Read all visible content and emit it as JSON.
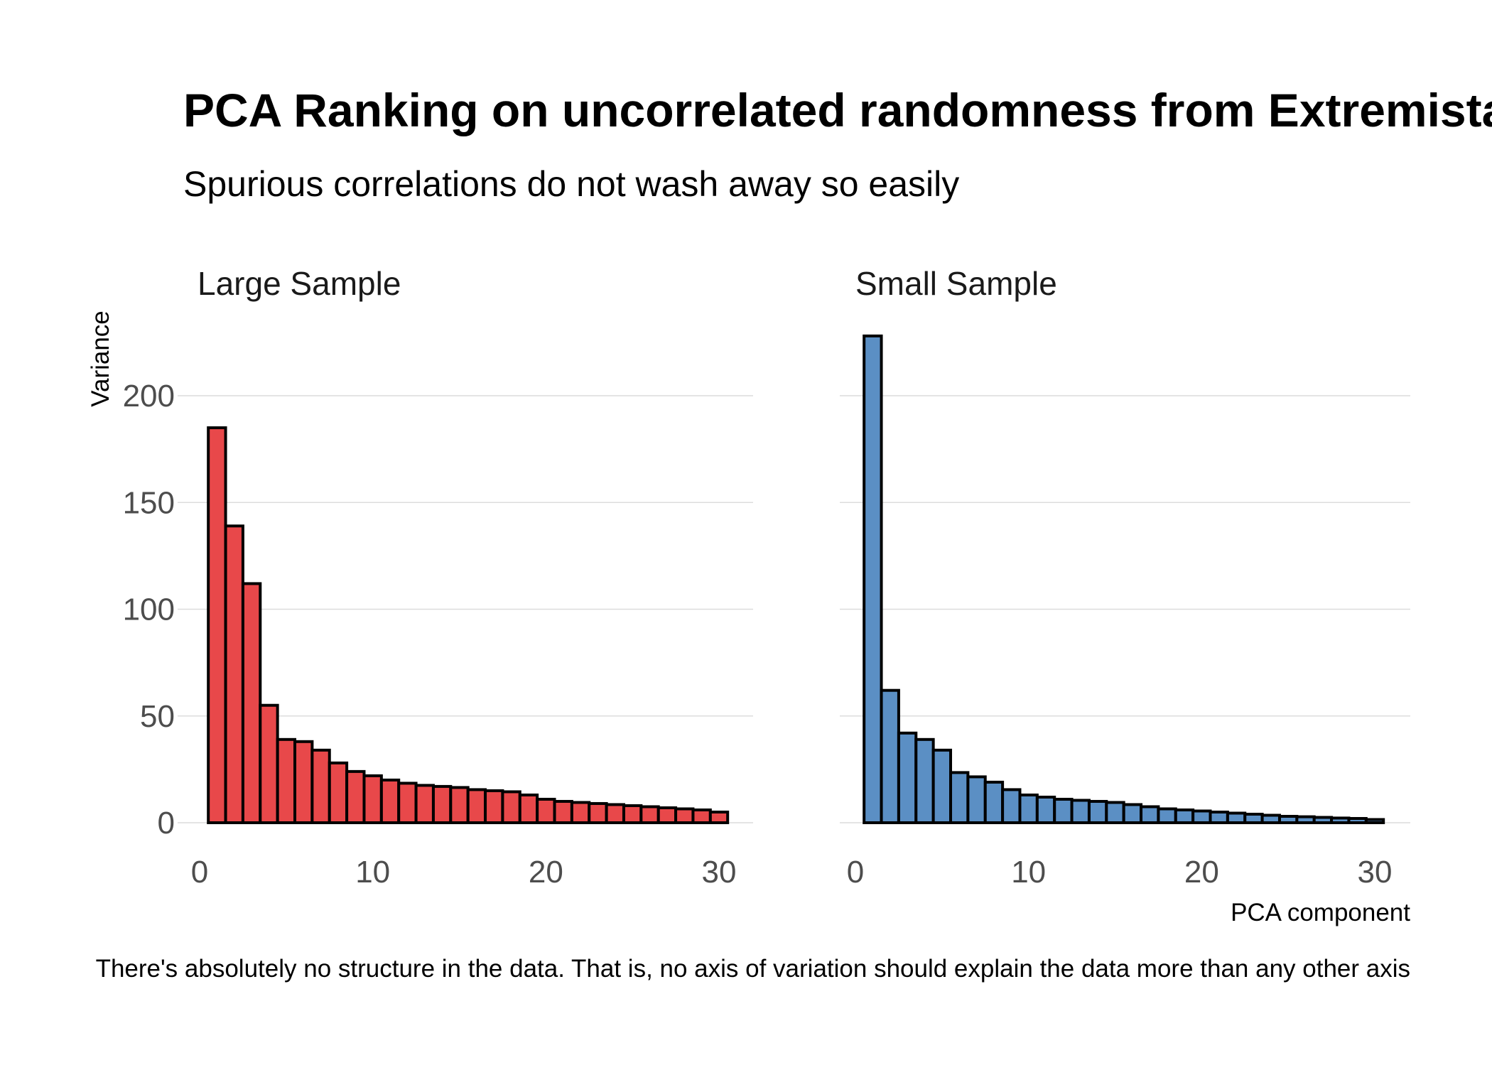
{
  "title": "PCA Ranking on uncorrelated randomness from Extremistan",
  "subtitle": "Spurious correlations do not wash away so easily",
  "caption": "There's absolutely no structure in the data. That is, no axis of variation should explain the data more than any other axis",
  "colors": {
    "large": "#E8484A",
    "small": "#5B8FC4"
  },
  "chart_data": {
    "type": "bar",
    "xlabel": "PCA component",
    "ylabel": "Variance",
    "ylim": [
      0,
      230
    ],
    "xlim": [
      0,
      31
    ],
    "y_ticks": [
      0,
      50,
      100,
      150,
      200
    ],
    "x_ticks": [
      0,
      10,
      20,
      30
    ],
    "grid": true,
    "legend": "none",
    "x": [
      1,
      2,
      3,
      4,
      5,
      6,
      7,
      8,
      9,
      10,
      11,
      12,
      13,
      14,
      15,
      16,
      17,
      18,
      19,
      20,
      21,
      22,
      23,
      24,
      25,
      26,
      27,
      28,
      29,
      30
    ],
    "series": [
      {
        "name": "Large Sample",
        "values": [
          185,
          139,
          112,
          55,
          39,
          38,
          34,
          28,
          24,
          22,
          20,
          18.5,
          17.5,
          17,
          16.5,
          15.5,
          15,
          14.5,
          13,
          11,
          10,
          9.5,
          9,
          8.5,
          8,
          7.5,
          7,
          6.5,
          6,
          5
        ]
      },
      {
        "name": "Small Sample",
        "values": [
          228,
          62,
          42,
          39,
          34,
          23.5,
          21.5,
          19,
          15.5,
          13,
          12,
          11,
          10.5,
          10,
          9.5,
          8.5,
          7.5,
          6.5,
          6,
          5.5,
          5,
          4.5,
          4,
          3.5,
          3,
          2.8,
          2.5,
          2.2,
          2,
          1.5
        ]
      }
    ]
  }
}
